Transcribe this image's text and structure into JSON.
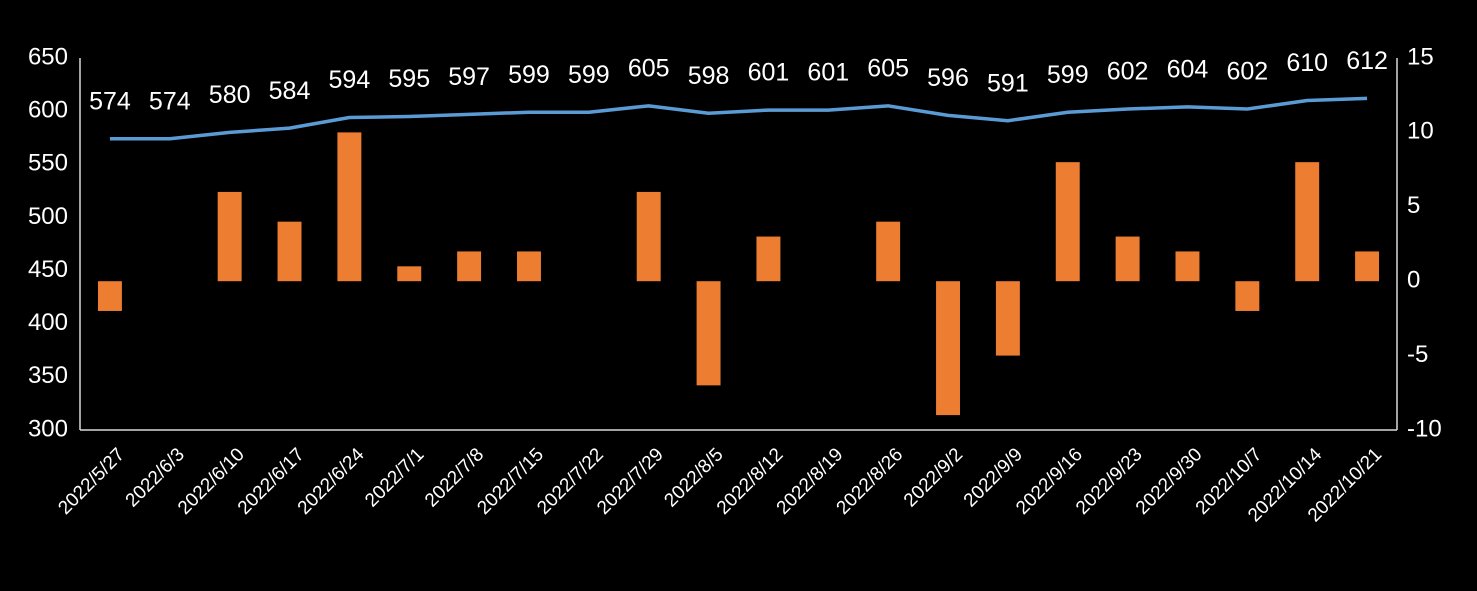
{
  "chart_data": {
    "type": "combo",
    "categories": [
      "2022/5/27",
      "2022/6/3",
      "2022/6/10",
      "2022/6/17",
      "2022/6/24",
      "2022/7/1",
      "2022/7/8",
      "2022/7/15",
      "2022/7/22",
      "2022/7/29",
      "2022/8/5",
      "2022/8/12",
      "2022/8/19",
      "2022/8/26",
      "2022/9/2",
      "2022/9/9",
      "2022/9/16",
      "2022/9/23",
      "2022/9/30",
      "2022/10/7",
      "2022/10/14",
      "2022/10/21"
    ],
    "series": [
      {
        "type": "line",
        "axis": "y",
        "color": "#5b9bd5",
        "data_labels": true,
        "values": [
          574,
          574,
          580,
          584,
          594,
          595,
          597,
          599,
          599,
          605,
          598,
          601,
          601,
          605,
          596,
          591,
          599,
          602,
          604,
          602,
          610,
          612
        ]
      },
      {
        "type": "bar",
        "axis": "y2",
        "color": "#ed7d31",
        "data_labels": false,
        "values": [
          -2,
          0,
          6,
          4,
          10,
          1,
          2,
          2,
          0,
          6,
          -7,
          3,
          0,
          4,
          -9,
          -5,
          8,
          3,
          2,
          -2,
          8,
          2
        ]
      }
    ],
    "ylim": [
      300,
      650
    ],
    "yticks": [
      300,
      350,
      400,
      450,
      500,
      550,
      600,
      650
    ],
    "y2lim": [
      -10,
      15
    ],
    "y2ticks": [
      -10,
      -5,
      0,
      5,
      10,
      15
    ],
    "grid": false
  }
}
